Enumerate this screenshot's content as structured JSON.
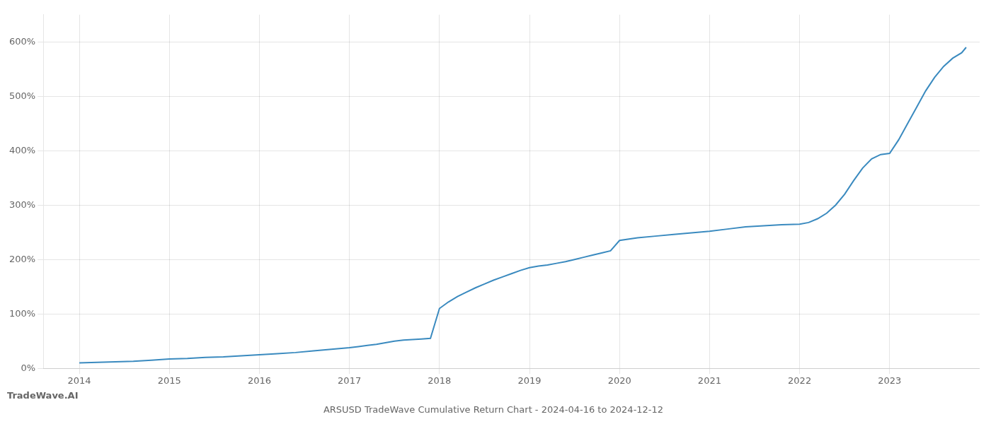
{
  "chart_data": {
    "type": "line",
    "title": "ARSUSD TradeWave Cumulative Return Chart - 2024-04-16 to 2024-12-12",
    "annotations": [
      "TradeWave.AI"
    ],
    "x": [
      2014.0,
      2014.2,
      2014.4,
      2014.6,
      2014.8,
      2015.0,
      2015.2,
      2015.4,
      2015.6,
      2015.8,
      2016.0,
      2016.2,
      2016.4,
      2016.6,
      2016.8,
      2017.0,
      2017.1,
      2017.2,
      2017.3,
      2017.4,
      2017.5,
      2017.6,
      2017.7,
      2017.8,
      2017.9,
      2018.0,
      2018.1,
      2018.2,
      2018.3,
      2018.4,
      2018.5,
      2018.6,
      2018.7,
      2018.8,
      2018.9,
      2019.0,
      2019.1,
      2019.2,
      2019.3,
      2019.4,
      2019.5,
      2019.6,
      2019.7,
      2019.8,
      2019.9,
      2020.0,
      2020.2,
      2020.4,
      2020.6,
      2020.8,
      2021.0,
      2021.2,
      2021.4,
      2021.6,
      2021.8,
      2022.0,
      2022.1,
      2022.2,
      2022.3,
      2022.4,
      2022.5,
      2022.6,
      2022.7,
      2022.8,
      2022.9,
      2023.0,
      2023.1,
      2023.2,
      2023.3,
      2023.4,
      2023.5,
      2023.6,
      2023.7,
      2023.8,
      2023.85
    ],
    "values": [
      10,
      11,
      12,
      13,
      15,
      17,
      18,
      20,
      21,
      23,
      25,
      27,
      29,
      32,
      35,
      38,
      40,
      42,
      44,
      47,
      50,
      52,
      53,
      54,
      55,
      110,
      122,
      132,
      140,
      148,
      155,
      162,
      168,
      174,
      180,
      185,
      188,
      190,
      193,
      196,
      200,
      204,
      208,
      212,
      216,
      235,
      240,
      243,
      246,
      249,
      252,
      256,
      260,
      262,
      264,
      265,
      268,
      275,
      285,
      300,
      320,
      345,
      368,
      385,
      393,
      395,
      420,
      450,
      480,
      510,
      535,
      555,
      570,
      580,
      590
    ],
    "color": "#3a8abf",
    "xlim": [
      2013.6,
      2024.0
    ],
    "ylim": [
      0,
      650
    ],
    "xticks": [
      2014,
      2015,
      2016,
      2017,
      2018,
      2019,
      2020,
      2021,
      2022,
      2023
    ],
    "yticks": [
      {
        "value": 0,
        "label": "0%"
      },
      {
        "value": 100,
        "label": "100%"
      },
      {
        "value": 200,
        "label": "200%"
      },
      {
        "value": 300,
        "label": "300%"
      },
      {
        "value": 400,
        "label": "400%"
      },
      {
        "value": 500,
        "label": "500%"
      },
      {
        "value": 600,
        "label": "600%"
      }
    ],
    "grid": true
  }
}
